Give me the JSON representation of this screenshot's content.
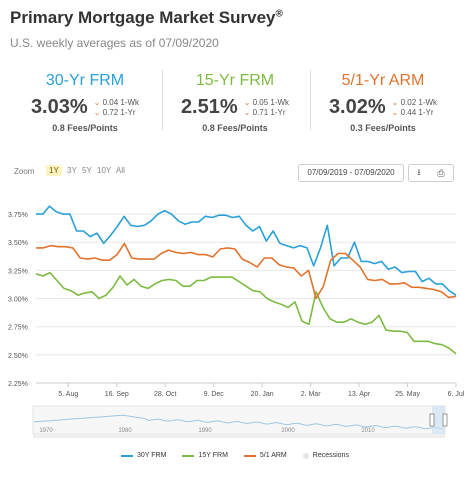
{
  "header": {
    "title": "Primary Mortgage Market Survey",
    "title_mark": "®",
    "subtitle": "U.S. weekly averages as of 07/09/2020"
  },
  "rates": [
    {
      "name": "30-Yr FRM",
      "color": "#2aa0d6",
      "value": "3.03%",
      "chg_wk": "0.04 1-Wk",
      "chg_yr": "0.72 1-Yr",
      "fees": "0.8 Fees/Points"
    },
    {
      "name": "15-Yr FRM",
      "color": "#7dbb42",
      "value": "2.51%",
      "chg_wk": "0.05 1-Wk",
      "chg_yr": "0.71 1-Yr",
      "fees": "0.8 Fees/Points"
    },
    {
      "name": "5/1-Yr ARM",
      "color": "#e0742e",
      "value": "3.02%",
      "chg_wk": "0.02 1-Wk",
      "chg_yr": "0.44 1-Yr",
      "fees": "0.3 Fees/Points"
    }
  ],
  "down_arrow": "⌄",
  "toolbar": {
    "zoom_label": "Zoom",
    "zoom_buttons": [
      "1Y",
      "3Y",
      "5Y",
      "10Y",
      "All"
    ],
    "active_zoom": "1Y",
    "date_range": "07/09/2019 - 07/09/2020",
    "download_icon": "⭳",
    "print_icon": "⎙"
  },
  "chart_data": {
    "type": "line",
    "ylim": [
      2.25,
      3.875
    ],
    "y_ticks": [
      "3.75%",
      "3.50%",
      "3.25%",
      "3.00%",
      "2.75%",
      "2.50%",
      "2.25%"
    ],
    "y_tick_values": [
      3.75,
      3.5,
      3.25,
      3.0,
      2.75,
      2.5,
      2.25
    ],
    "x_tick_labels": [
      "5. Aug",
      "16. Sep",
      "28. Oct",
      "9. Dec",
      "20. Jan",
      "2. Mar",
      "13. Apr",
      "25. May",
      "6. Jul"
    ],
    "x_tick_weeks": [
      4,
      10,
      16,
      22,
      28,
      34,
      40,
      46,
      52
    ],
    "grid": true,
    "legend_position": "bottom",
    "series": [
      {
        "name": "30Y FRM",
        "color": "#2aa0d6",
        "values": [
          3.75,
          3.75,
          3.82,
          3.77,
          3.75,
          3.75,
          3.6,
          3.6,
          3.55,
          3.58,
          3.49,
          3.56,
          3.64,
          3.73,
          3.65,
          3.64,
          3.65,
          3.69,
          3.75,
          3.78,
          3.75,
          3.69,
          3.66,
          3.68,
          3.68,
          3.73,
          3.72,
          3.74,
          3.74,
          3.72,
          3.73,
          3.65,
          3.6,
          3.64,
          3.51,
          3.6,
          3.49,
          3.47,
          3.45,
          3.47,
          3.45,
          3.29,
          3.45,
          3.65,
          3.29,
          3.36,
          3.36,
          3.5,
          3.33,
          3.33,
          3.31,
          3.33,
          3.26,
          3.28,
          3.23,
          3.24,
          3.24,
          3.15,
          3.18,
          3.13,
          3.13,
          3.07,
          3.03
        ]
      },
      {
        "name": "15Y FRM",
        "color": "#7dbb42",
        "values": [
          3.22,
          3.2,
          3.23,
          3.16,
          3.09,
          3.07,
          3.03,
          3.05,
          3.06,
          3.0,
          3.03,
          3.1,
          3.2,
          3.12,
          3.17,
          3.11,
          3.09,
          3.13,
          3.16,
          3.17,
          3.16,
          3.11,
          3.11,
          3.16,
          3.16,
          3.19,
          3.19,
          3.19,
          3.19,
          3.15,
          3.11,
          3.07,
          3.06,
          3.0,
          2.97,
          2.95,
          2.92,
          2.97,
          2.8,
          2.77,
          3.06,
          2.92,
          2.82,
          2.79,
          2.79,
          2.82,
          2.79,
          2.77,
          2.79,
          2.85,
          2.72,
          2.71,
          2.71,
          2.7,
          2.62,
          2.62,
          2.62,
          2.6,
          2.59,
          2.56,
          2.51
        ]
      },
      {
        "name": "5/1 ARM",
        "color": "#e0742e",
        "values": [
          3.45,
          3.45,
          3.47,
          3.46,
          3.46,
          3.45,
          3.36,
          3.35,
          3.36,
          3.34,
          3.34,
          3.39,
          3.49,
          3.36,
          3.35,
          3.35,
          3.35,
          3.4,
          3.43,
          3.41,
          3.4,
          3.41,
          3.39,
          3.39,
          3.37,
          3.44,
          3.45,
          3.44,
          3.35,
          3.32,
          3.28,
          3.36,
          3.36,
          3.3,
          3.28,
          3.27,
          3.2,
          3.25,
          3.0,
          3.11,
          3.34,
          3.4,
          3.4,
          3.34,
          3.28,
          3.17,
          3.16,
          3.17,
          3.13,
          3.13,
          3.14,
          3.1,
          3.1,
          3.09,
          3.08,
          3.06,
          3.01,
          3.02
        ]
      }
    ],
    "legend_extra": "Recessions"
  },
  "navigator": {
    "year_labels": [
      "1970",
      "1980",
      "1990",
      "2000",
      "2010"
    ]
  }
}
